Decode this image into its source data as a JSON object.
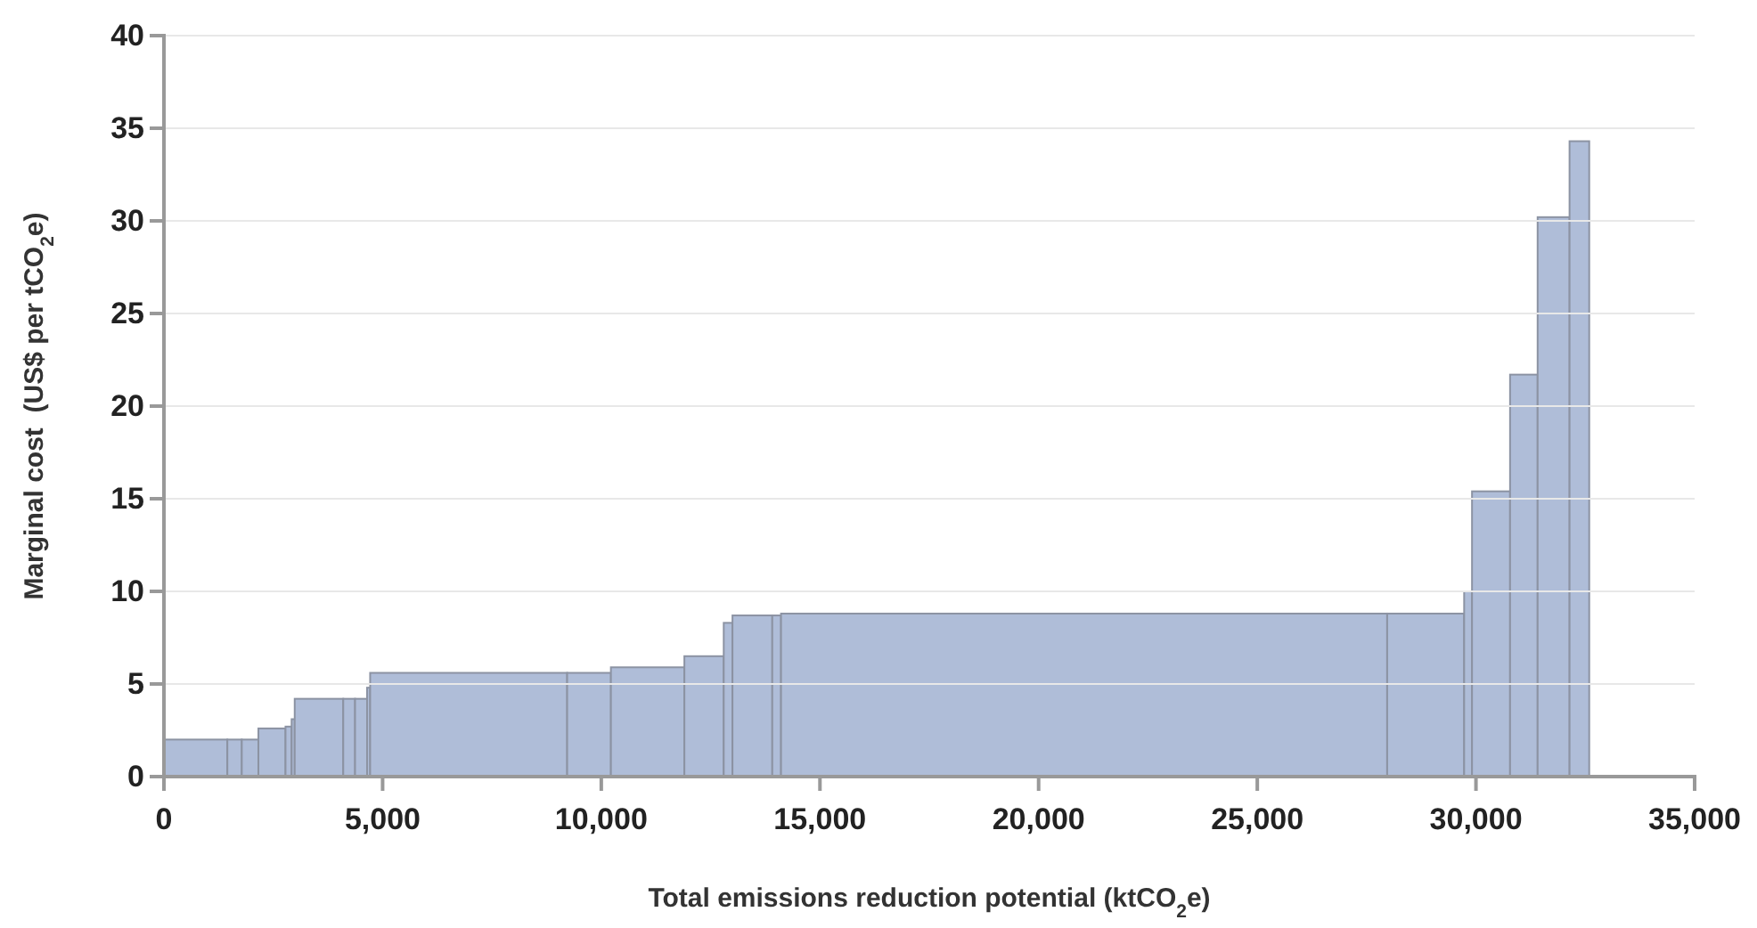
{
  "chart_data": {
    "type": "histogram",
    "xlabel": "Total emissions reduction potential (ktCO$_{2}$e)",
    "ylabel": "Marginal cost  (US$ per tCO$_{2}$e)",
    "bins": [
      0,
      1450,
      1780,
      2160,
      2780,
      2920,
      2990,
      4100,
      4370,
      4645,
      4715,
      9220,
      10220,
      11900,
      12800,
      13000,
      13910,
      14110,
      27970,
      29730,
      29910,
      30780,
      31410,
      32140,
      32590
    ],
    "values": [
      2.0,
      2.0,
      2.0,
      2.6,
      2.7,
      3.1,
      4.2,
      4.2,
      4.2,
      4.8,
      5.6,
      5.6,
      5.9,
      6.5,
      8.3,
      8.7,
      8.7,
      8.8,
      8.8,
      10.0,
      15.4,
      21.7,
      30.2,
      34.3
    ],
    "color": "#afbdd8",
    "xlim": [
      0,
      35000
    ],
    "xticks": [
      0,
      {
        "value": 5000,
        "label": "5,000"
      },
      {
        "value": 10000,
        "label": "10,000"
      },
      {
        "value": 15000,
        "label": "15,000"
      },
      {
        "value": 20000,
        "label": "20,000"
      },
      {
        "value": 25000,
        "label": "25,000"
      },
      {
        "value": 30000,
        "label": "30,000"
      },
      {
        "value": 35000,
        "label": "35,000"
      }
    ],
    "ylim": [
      0,
      40
    ],
    "yticks": [
      0,
      5,
      10,
      15,
      20,
      25,
      30,
      35,
      40
    ],
    "grid": "y"
  }
}
